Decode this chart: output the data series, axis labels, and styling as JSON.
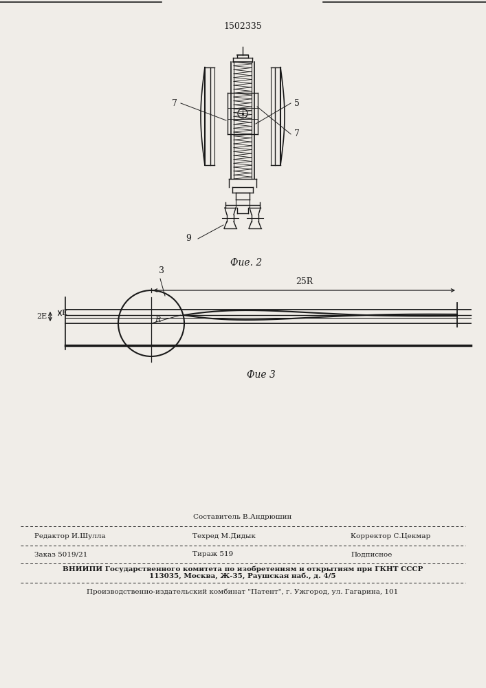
{
  "patent_number": "1502335",
  "fig2_label": "Фие. 2",
  "fig3_label": "Фие 3",
  "label_5": "5",
  "label_7a": "7",
  "label_7b": "7",
  "label_9": "9",
  "label_3": "3",
  "label_2E": "2Е",
  "label_E": "Е",
  "label_R": "R",
  "label_25R": "25R",
  "line_color": "#1a1a1a",
  "bg_color": "#f0ede8",
  "footer_line_sestavitel": "Составитель В.Андрюшин",
  "footer_label_redaktor": "Редактор И.Шулла",
  "footer_label_tehred": "Техред М.Дидык",
  "footer_label_korrektor": "Корректор С.Цекмар",
  "footer_zakaz": "Заказ 5019/21",
  "footer_tirazh": "Тираж 519",
  "footer_podpisnoe": "Подписное",
  "footer_vniipи": "ВНИИПИ Государственного комитета по изобретениям и открытиям при ГКНТ СССР",
  "footer_addr": "113035, Москва, Ж-35, Раушская наб., д. 4/5",
  "footer_patent": "Производственно-издательский комбинат \"Патент\", г. Ужгород, ул. Гагарина, 101"
}
